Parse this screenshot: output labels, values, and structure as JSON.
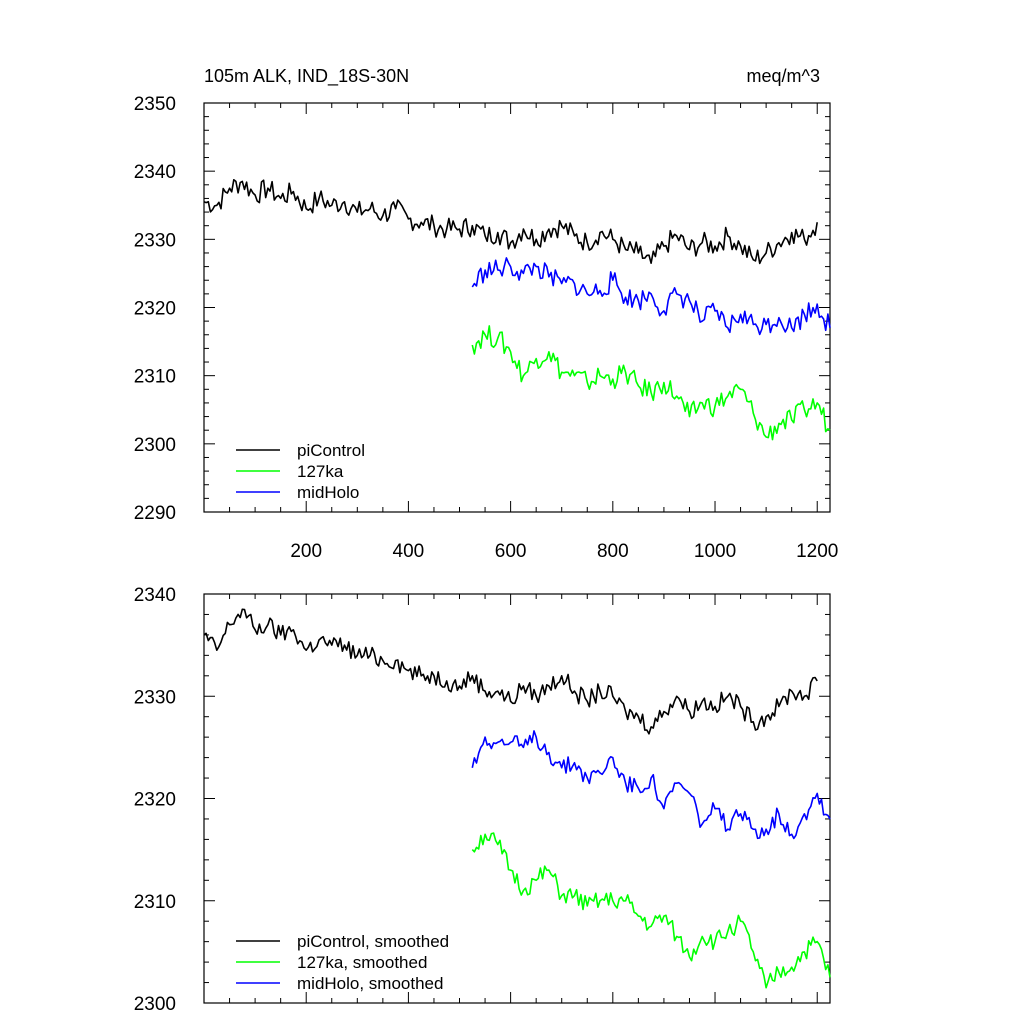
{
  "header": {
    "left": "105m ALK, IND_18S-30N",
    "right": "meq/m^3"
  },
  "colors": {
    "piControl": "#000000",
    "127ka": "#00ff00",
    "midHolo": "#0000ff"
  },
  "chart_data": [
    {
      "type": "line",
      "title": "105m ALK, IND_18S-30N",
      "units": "meq/m^3",
      "xlabel": "",
      "ylabel": "",
      "xlim": [
        0,
        1225
      ],
      "ylim": [
        2290,
        2350
      ],
      "xticks": [
        200,
        400,
        600,
        800,
        1000,
        1200
      ],
      "yticks": [
        2290,
        2300,
        2310,
        2320,
        2330,
        2340,
        2350
      ],
      "grid": false,
      "legend_position": "bottom-left",
      "series": [
        {
          "name": "piControl",
          "color": "#000000",
          "x": [
            0,
            25,
            50,
            75,
            100,
            125,
            150,
            175,
            200,
            225,
            250,
            275,
            300,
            325,
            350,
            375,
            400,
            425,
            450,
            475,
            500,
            525,
            550,
            575,
            600,
            625,
            650,
            675,
            700,
            725,
            750,
            775,
            800,
            825,
            850,
            875,
            900,
            925,
            950,
            975,
            1000,
            1025,
            1050,
            1075,
            1100,
            1125,
            1150,
            1175,
            1200
          ],
          "y": [
            2335.5,
            2335.0,
            2337.5,
            2338.5,
            2336.5,
            2337.5,
            2336.0,
            2337.0,
            2334.5,
            2336.0,
            2335.0,
            2335.5,
            2334.0,
            2334.5,
            2333.5,
            2334.5,
            2333.0,
            2332.5,
            2332.0,
            2331.5,
            2331.5,
            2332.0,
            2330.5,
            2331.0,
            2329.5,
            2331.5,
            2330.0,
            2331.5,
            2332.0,
            2330.5,
            2329.5,
            2331.0,
            2330.0,
            2328.5,
            2328.0,
            2326.5,
            2329.0,
            2330.5,
            2328.5,
            2329.5,
            2329.0,
            2330.5,
            2329.0,
            2327.0,
            2328.0,
            2329.5,
            2331.0,
            2330.0,
            2332.5
          ]
        },
        {
          "name": "127ka",
          "color": "#00ff00",
          "x": [
            525,
            550,
            575,
            600,
            625,
            650,
            675,
            700,
            725,
            750,
            775,
            800,
            825,
            850,
            875,
            900,
            925,
            950,
            975,
            1000,
            1025,
            1050,
            1075,
            1100,
            1125,
            1150,
            1175,
            1200,
            1225
          ],
          "y": [
            2314.5,
            2316.0,
            2315.5,
            2313.5,
            2310.0,
            2312.5,
            2313.5,
            2310.5,
            2310.0,
            2309.0,
            2310.0,
            2309.5,
            2310.5,
            2308.5,
            2307.5,
            2309.0,
            2307.0,
            2304.0,
            2306.0,
            2305.5,
            2307.0,
            2308.0,
            2304.5,
            2301.0,
            2303.0,
            2303.5,
            2305.0,
            2306.0,
            2302.0
          ]
        },
        {
          "name": "midHolo",
          "color": "#0000ff",
          "x": [
            525,
            550,
            575,
            600,
            625,
            650,
            675,
            700,
            725,
            750,
            775,
            800,
            825,
            850,
            875,
            900,
            925,
            950,
            975,
            1000,
            1025,
            1050,
            1075,
            1100,
            1125,
            1150,
            1175,
            1200,
            1225
          ],
          "y": [
            2323.0,
            2325.5,
            2325.5,
            2326.0,
            2325.0,
            2326.0,
            2324.5,
            2323.5,
            2323.5,
            2322.0,
            2322.5,
            2324.0,
            2321.5,
            2321.0,
            2322.0,
            2319.5,
            2322.0,
            2321.0,
            2318.0,
            2319.5,
            2317.0,
            2319.0,
            2317.5,
            2317.5,
            2318.5,
            2317.0,
            2319.0,
            2320.5,
            2317.0
          ]
        }
      ]
    },
    {
      "type": "line",
      "title": "",
      "xlabel": "",
      "ylabel": "",
      "xlim": [
        0,
        1225
      ],
      "ylim": [
        2300,
        2340
      ],
      "xticks": [
        200,
        400,
        600,
        800,
        1000,
        1200
      ],
      "yticks": [
        2300,
        2310,
        2320,
        2330,
        2340
      ],
      "grid": false,
      "legend_position": "bottom-left",
      "series": [
        {
          "name": "piControl, smoothed",
          "color": "#000000",
          "x": [
            0,
            25,
            50,
            75,
            100,
            125,
            150,
            175,
            200,
            225,
            250,
            275,
            300,
            325,
            350,
            375,
            400,
            425,
            450,
            475,
            500,
            525,
            550,
            575,
            600,
            625,
            650,
            675,
            700,
            725,
            750,
            775,
            800,
            825,
            850,
            875,
            900,
            925,
            950,
            975,
            1000,
            1025,
            1050,
            1075,
            1100,
            1125,
            1150,
            1175,
            1200
          ],
          "y": [
            2336.0,
            2334.5,
            2337.0,
            2338.5,
            2336.5,
            2337.0,
            2336.0,
            2336.5,
            2334.5,
            2335.5,
            2335.0,
            2335.0,
            2334.0,
            2334.0,
            2333.5,
            2333.5,
            2332.5,
            2332.0,
            2332.0,
            2331.5,
            2331.0,
            2332.0,
            2330.5,
            2330.5,
            2329.5,
            2331.0,
            2330.0,
            2331.0,
            2332.0,
            2330.5,
            2329.5,
            2330.5,
            2330.0,
            2328.5,
            2328.0,
            2327.0,
            2328.5,
            2330.0,
            2328.5,
            2329.5,
            2329.0,
            2330.0,
            2329.0,
            2327.5,
            2328.0,
            2329.0,
            2330.5,
            2330.0,
            2331.5
          ]
        },
        {
          "name": "127ka, smoothed",
          "color": "#00ff00",
          "x": [
            525,
            550,
            575,
            600,
            625,
            650,
            675,
            700,
            725,
            750,
            775,
            800,
            825,
            850,
            875,
            900,
            925,
            950,
            975,
            1000,
            1025,
            1050,
            1075,
            1100,
            1125,
            1150,
            1175,
            1200,
            1225
          ],
          "y": [
            2315.0,
            2316.5,
            2315.5,
            2313.0,
            2311.0,
            2312.0,
            2313.0,
            2310.5,
            2310.5,
            2309.5,
            2310.0,
            2310.0,
            2310.0,
            2308.5,
            2307.5,
            2308.5,
            2306.5,
            2304.5,
            2306.5,
            2306.0,
            2307.0,
            2308.0,
            2305.0,
            2301.5,
            2303.0,
            2303.5,
            2305.0,
            2306.0,
            2302.5
          ]
        },
        {
          "name": "midHolo, smoothed",
          "color": "#0000ff",
          "x": [
            525,
            550,
            575,
            600,
            625,
            650,
            675,
            700,
            725,
            750,
            775,
            800,
            825,
            850,
            875,
            900,
            925,
            950,
            975,
            1000,
            1025,
            1050,
            1075,
            1100,
            1125,
            1150,
            1175,
            1200,
            1225
          ],
          "y": [
            2323.0,
            2326.0,
            2325.5,
            2325.5,
            2325.0,
            2326.0,
            2324.5,
            2323.0,
            2323.5,
            2322.0,
            2322.5,
            2324.0,
            2321.5,
            2321.0,
            2322.0,
            2319.0,
            2321.5,
            2320.5,
            2317.5,
            2319.0,
            2317.0,
            2318.5,
            2317.0,
            2317.0,
            2318.5,
            2316.5,
            2318.5,
            2320.5,
            2318.0
          ]
        }
      ]
    }
  ]
}
